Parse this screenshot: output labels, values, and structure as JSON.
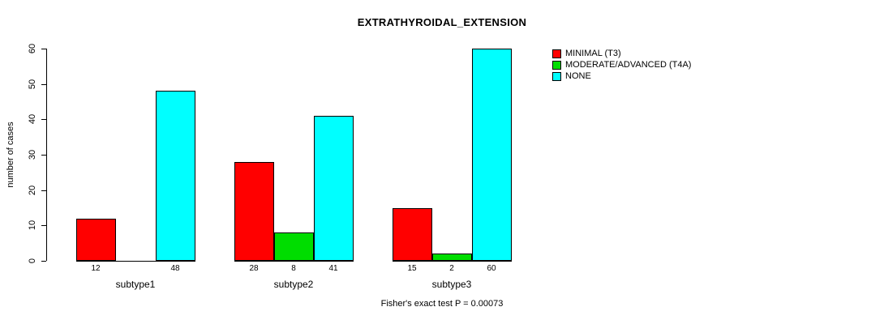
{
  "title": "EXTRATHYROIDAL_EXTENSION",
  "ylabel": "number of cases",
  "footer": "Fisher's exact test P = 0.00073",
  "chart_data": {
    "type": "bar",
    "title": "EXTRATHYROIDAL_EXTENSION",
    "xlabel": "",
    "ylabel": "number of cases",
    "categories": [
      "subtype1",
      "subtype2",
      "subtype3"
    ],
    "series": [
      {
        "name": "MINIMAL (T3)",
        "color": "#ff0000",
        "values": [
          12,
          28,
          15
        ]
      },
      {
        "name": "MODERATE/ADVANCED (T4A)",
        "color": "#00dd00",
        "values": [
          0,
          8,
          2
        ]
      },
      {
        "name": "NONE",
        "color": "#00ffff",
        "values": [
          48,
          41,
          60
        ]
      }
    ],
    "bar_labels": [
      [
        "12",
        "",
        "48"
      ],
      [
        "28",
        "8",
        "41"
      ],
      [
        "15",
        "2",
        "60"
      ]
    ],
    "ylim": [
      0,
      60
    ],
    "yticks": [
      0,
      10,
      20,
      30,
      40,
      50,
      60
    ],
    "grid": false,
    "legend_position": "right",
    "annotation": "Fisher's exact test P = 0.00073"
  }
}
